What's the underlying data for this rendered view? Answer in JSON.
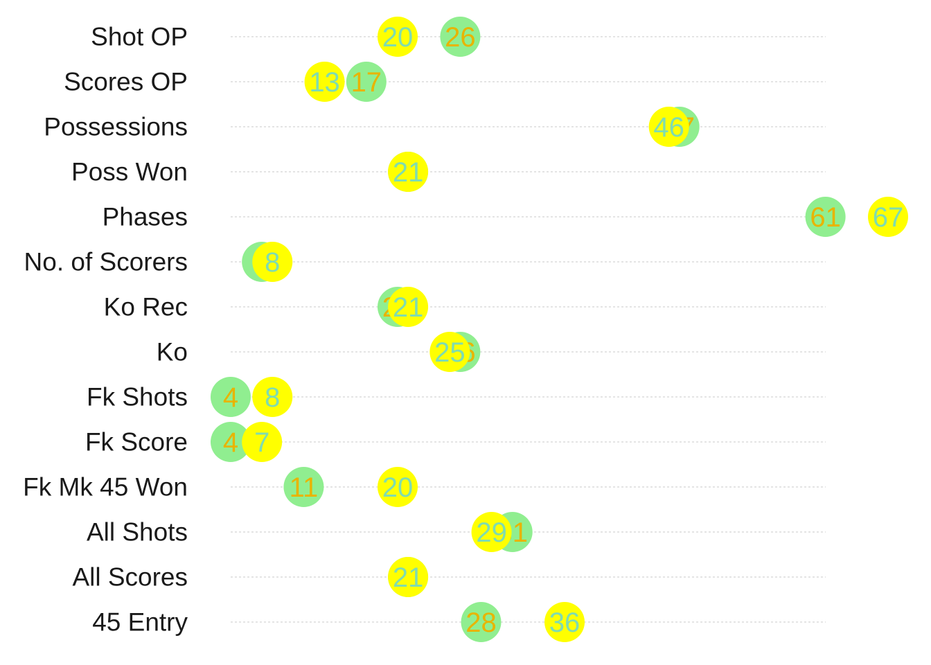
{
  "chart_data": {
    "type": "scatter",
    "title": "",
    "xlabel": "",
    "ylabel": "",
    "xlim": [
      4,
      67
    ],
    "grid": true,
    "colors": {
      "a": "#90ee90",
      "b": "#ffff00",
      "a_text": "#e8b400",
      "b_text": "#7fdcb0"
    },
    "categories": [
      "Shot OP",
      "Scores OP",
      "Possessions",
      "Poss  Won",
      "Phases",
      "No. of Scorers",
      "Ko Rec",
      "Ko",
      "Fk Shots",
      "Fk Score",
      "Fk Mk 45 Won",
      "All Shots",
      "All Scores",
      "45 Entry"
    ],
    "series": [
      {
        "values": [
          26,
          17,
          47,
          21,
          61,
          7,
          20,
          26,
          4,
          4,
          11,
          31,
          21,
          28
        ]
      },
      {
        "values": [
          20,
          13,
          46,
          21,
          67,
          8,
          21,
          25,
          8,
          7,
          20,
          29,
          21,
          36
        ]
      }
    ]
  }
}
